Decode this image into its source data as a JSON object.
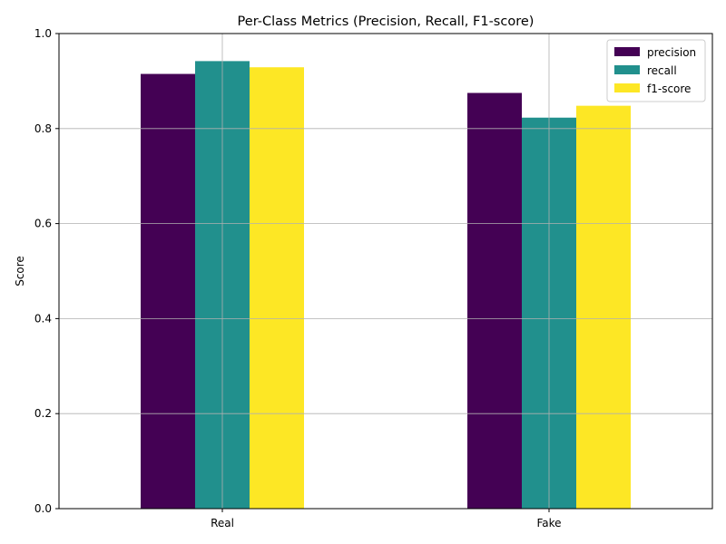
{
  "chart_data": {
    "type": "bar",
    "title": "Per-Class Metrics (Precision, Recall, F1-score)",
    "xlabel": "",
    "ylabel": "Score",
    "categories": [
      "Real",
      "Fake"
    ],
    "series": [
      {
        "name": "precision",
        "color": "#440154",
        "values": [
          0.915,
          0.875
        ]
      },
      {
        "name": "recall",
        "color": "#21908d",
        "values": [
          0.942,
          0.823
        ]
      },
      {
        "name": "f1-score",
        "color": "#fde725",
        "values": [
          0.929,
          0.848
        ]
      }
    ],
    "ylim": [
      0,
      1.0
    ],
    "yticks": [
      0.0,
      0.2,
      0.4,
      0.6,
      0.8,
      1.0
    ],
    "ytick_labels": [
      "0.0",
      "0.2",
      "0.4",
      "0.6",
      "0.8",
      "1.0"
    ],
    "grid": true,
    "legend_position": "top-right"
  }
}
